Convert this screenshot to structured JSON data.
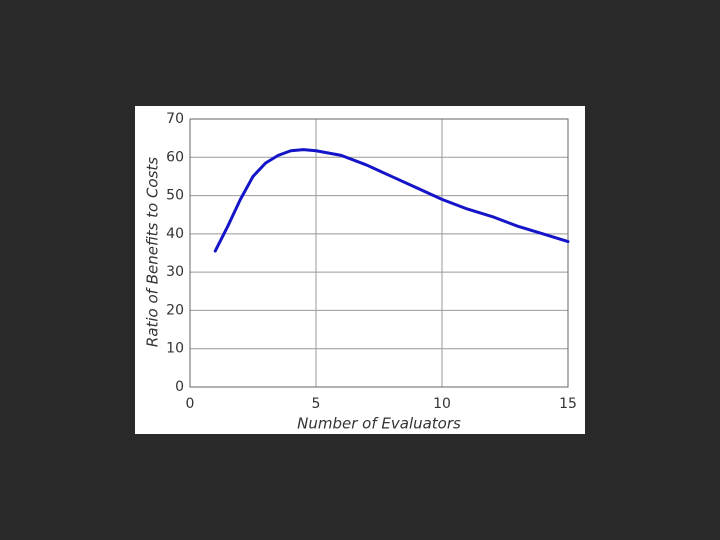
{
  "chart_data": {
    "type": "line",
    "x_label": "Number of Evaluators",
    "y_label": "Ratio of Benefits to Costs",
    "x": [
      1,
      1.5,
      2,
      2.5,
      3,
      3.5,
      4,
      4.5,
      5,
      6,
      7,
      8,
      9,
      10,
      11,
      12,
      13,
      14,
      15
    ],
    "series": [
      {
        "color": "#1414c8",
        "values": [
          35.5,
          42,
          49,
          55,
          58.5,
          60.5,
          61.7,
          62,
          61.7,
          60.5,
          58,
          55,
          52,
          49,
          46.5,
          44.5,
          42,
          40,
          38
        ]
      }
    ],
    "xlim": [
      0,
      15
    ],
    "xticks": [
      0,
      5,
      10,
      15
    ],
    "ylim": [
      0,
      70
    ],
    "yticks": [
      0,
      10,
      20,
      30,
      40,
      50,
      60,
      70
    ],
    "grid": true
  }
}
